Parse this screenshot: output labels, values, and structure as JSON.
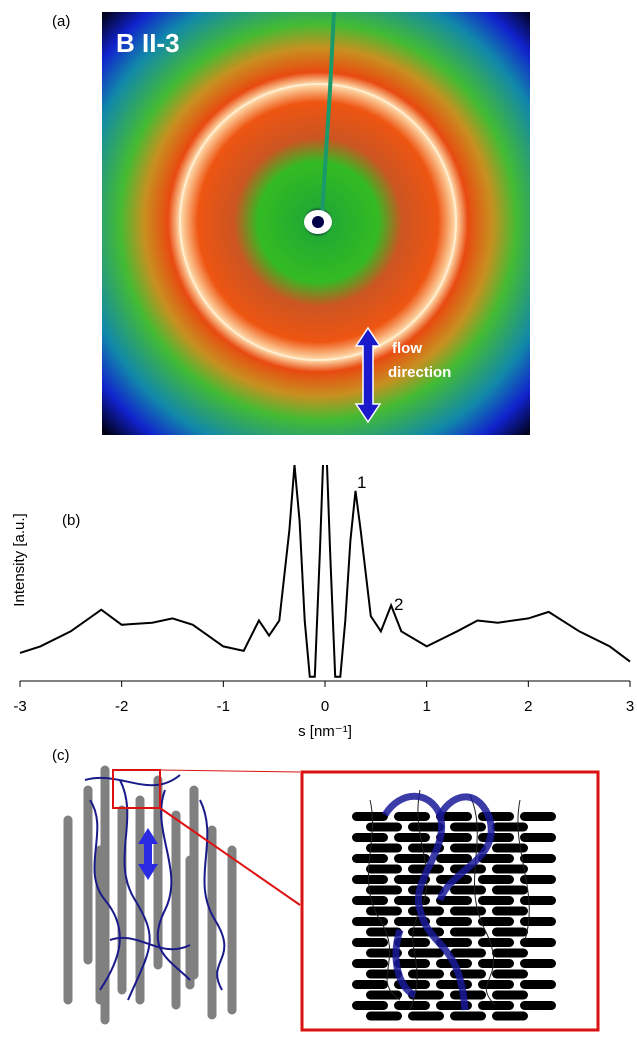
{
  "figure": {
    "panel_a": {
      "label": "(a)",
      "sample": "B II-3",
      "arrow_label": [
        "flow",
        "direction"
      ]
    },
    "panel_c": {
      "label": "(c)"
    }
  },
  "chart_data": {
    "type": "line",
    "panel_label": "(b)",
    "ylabel": "Intensity [a.u.]",
    "xlabel": "s [nm⁻¹]",
    "annotations": [
      "1",
      "2"
    ],
    "x": [
      -3,
      -2.8,
      -2.5,
      -2.2,
      -2.0,
      -1.7,
      -1.5,
      -1.3,
      -1.0,
      -0.8,
      -0.65,
      -0.55,
      -0.45,
      -0.35,
      -0.3,
      -0.25,
      -0.2,
      -0.15,
      -0.1,
      -0.05,
      -0.02,
      0,
      0.02,
      0.05,
      0.1,
      0.15,
      0.2,
      0.25,
      0.3,
      0.35,
      0.45,
      0.55,
      0.65,
      0.75,
      1.0,
      1.3,
      1.5,
      1.7,
      2.0,
      2.2,
      2.5,
      2.8,
      3.0
    ],
    "series": [
      {
        "color": "#000000",
        "values": [
          13,
          16,
          23,
          33,
          26,
          27,
          29,
          26,
          16,
          14,
          28,
          21,
          28,
          70,
          100,
          74,
          28,
          2,
          2,
          60,
          100,
          110,
          100,
          60,
          2,
          2,
          28,
          65,
          88,
          70,
          30,
          23,
          35,
          23,
          16,
          23,
          28,
          27,
          29,
          32,
          23,
          16,
          9
        ]
      }
    ],
    "xlim": [
      -3,
      3
    ],
    "ylim": [
      0,
      100
    ],
    "xticks": [
      -3,
      -2,
      -1,
      0,
      1,
      2,
      3
    ]
  }
}
